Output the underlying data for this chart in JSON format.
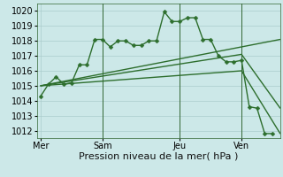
{
  "background_color": "#cce8e8",
  "grid_color": "#aacccc",
  "line_color": "#2d6e2d",
  "xlabel": "Pression niveau de la mer( hPa )",
  "xlabel_fontsize": 8,
  "ylim": [
    1011.5,
    1020.5
  ],
  "yticks": [
    1012,
    1013,
    1014,
    1015,
    1016,
    1017,
    1018,
    1019,
    1020
  ],
  "tick_fontsize": 7,
  "xtick_labels": [
    "Mer",
    "Sam",
    "Jeu",
    "Ven"
  ],
  "xtick_positions": [
    0,
    8,
    18,
    26
  ],
  "vline_positions": [
    8,
    18,
    26
  ],
  "xlim": [
    -0.5,
    31
  ],
  "main_line": {
    "x": [
      0,
      1,
      2,
      3,
      4,
      5,
      6,
      7,
      8,
      9,
      10,
      11,
      12,
      13,
      14,
      15,
      16,
      17,
      18,
      19,
      20,
      21,
      22,
      23,
      24,
      25,
      26,
      27,
      28,
      29,
      30
    ],
    "y": [
      1014.3,
      1015.1,
      1015.6,
      1015.1,
      1015.2,
      1016.4,
      1016.4,
      1018.1,
      1018.1,
      1017.6,
      1018.0,
      1018.0,
      1017.7,
      1017.7,
      1018.0,
      1018.0,
      1019.95,
      1019.3,
      1019.3,
      1019.55,
      1019.55,
      1018.1,
      1018.1,
      1017.0,
      1016.6,
      1016.6,
      1016.7,
      1013.6,
      1013.5,
      1011.8,
      1011.8
    ]
  },
  "smooth_lines": [
    {
      "x": [
        0,
        31
      ],
      "y": [
        1015.0,
        1018.1
      ]
    },
    {
      "x": [
        0,
        26,
        31
      ],
      "y": [
        1015.0,
        1017.1,
        1013.5
      ]
    },
    {
      "x": [
        0,
        26,
        31
      ],
      "y": [
        1015.0,
        1016.0,
        1011.8
      ]
    }
  ]
}
